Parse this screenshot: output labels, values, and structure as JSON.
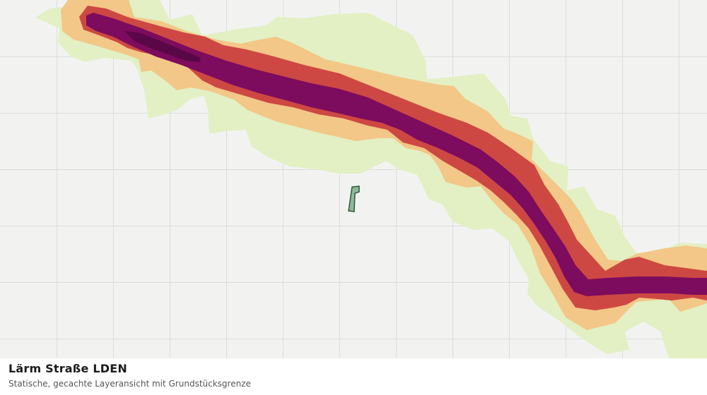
{
  "caption": {
    "title": "Lärm Straße LDEN",
    "subtitle": "Statische, gecachte Layeransicht mit Grundstücksgrenze"
  },
  "map": {
    "layer": "noise-contours",
    "grid_visible": true,
    "colors": {
      "background": "#f2f3f1",
      "grid": "#dcdedb",
      "band_lowest": "#e2f0c4",
      "band_low": "#f3c787",
      "band_mid": "#cd4843",
      "band_high": "#7d0b5e",
      "band_peak": "#5a0748",
      "parcel_fill": "#8fb89a",
      "parcel_stroke": "#2e5a3a"
    }
  }
}
